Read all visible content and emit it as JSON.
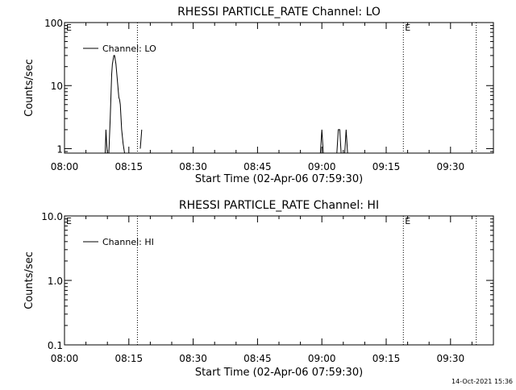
{
  "footer": {
    "timestamp": "14-Oct-2021 15:36"
  },
  "chart_data": [
    {
      "type": "line",
      "title": "RHESSI PARTICLE_RATE Channel: LO",
      "xlabel": "Start Time (02-Apr-06 07:59:30)",
      "ylabel": "Counts/sec",
      "y_scale": "log",
      "xlim": [
        "08:00",
        "09:40"
      ],
      "ylim": [
        0.85,
        100
      ],
      "x_ticks": [
        "08:00",
        "08:15",
        "08:30",
        "08:45",
        "09:00",
        "09:15",
        "09:30"
      ],
      "y_ticks": [
        "1",
        "10",
        "100"
      ],
      "legend": {
        "entries": [
          "Channel: LO"
        ],
        "placement": "top-left"
      },
      "markers": [
        {
          "time": "08:17",
          "label": ""
        },
        {
          "time": "09:19",
          "label": "E"
        },
        {
          "time": "09:36",
          "label": ""
        }
      ],
      "corner_label": "E",
      "series": [
        {
          "name": "Channel: LO",
          "segments": [
            {
              "x": [
                "08:09:30",
                "08:09:40",
                "08:09:50",
                "08:10:00"
              ],
              "y": [
                0.85,
                2,
                1.2,
                0.85
              ]
            },
            {
              "x": [
                "08:10:20",
                "08:10:40",
                "08:11:00",
                "08:11:10",
                "08:11:30",
                "08:11:40",
                "08:12:00",
                "08:12:20",
                "08:12:40",
                "08:12:50",
                "08:13:00",
                "08:13:20",
                "08:13:40",
                "08:14:00"
              ],
              "y": [
                0.85,
                3,
                15,
                22,
                30,
                30,
                22,
                12,
                6.5,
                6,
                5,
                2,
                1.2,
                0.85
              ]
            },
            {
              "x": [
                "08:17:40",
                "08:18:00"
              ],
              "y": [
                1,
                2
              ]
            },
            {
              "x": [
                "08:59:40",
                "09:00:00",
                "09:00:20"
              ],
              "y": [
                0.85,
                2,
                0.85
              ]
            },
            {
              "x": [
                "09:03:30",
                "09:03:50",
                "09:04:10",
                "09:04:30"
              ],
              "y": [
                0.85,
                2,
                2,
                0.85
              ]
            },
            {
              "x": [
                "09:05:20",
                "09:05:40",
                "09:06:00"
              ],
              "y": [
                0.85,
                2,
                0.85
              ]
            }
          ]
        }
      ]
    },
    {
      "type": "line",
      "title": "RHESSI PARTICLE_RATE Channel: HI",
      "xlabel": "Start Time (02-Apr-06 07:59:30)",
      "ylabel": "Counts/sec",
      "y_scale": "log",
      "xlim": [
        "08:00",
        "09:40"
      ],
      "ylim": [
        0.1,
        10
      ],
      "x_ticks": [
        "08:00",
        "08:15",
        "08:30",
        "08:45",
        "09:00",
        "09:15",
        "09:30"
      ],
      "y_ticks": [
        "0.1",
        "1.0",
        "10.0"
      ],
      "legend": {
        "entries": [
          "Channel: HI"
        ],
        "placement": "top-left"
      },
      "markers": [
        {
          "time": "08:17",
          "label": ""
        },
        {
          "time": "09:19",
          "label": "E"
        },
        {
          "time": "09:36",
          "label": ""
        }
      ],
      "corner_label": "E",
      "series": [
        {
          "name": "Channel: HI",
          "segments": []
        }
      ]
    }
  ]
}
